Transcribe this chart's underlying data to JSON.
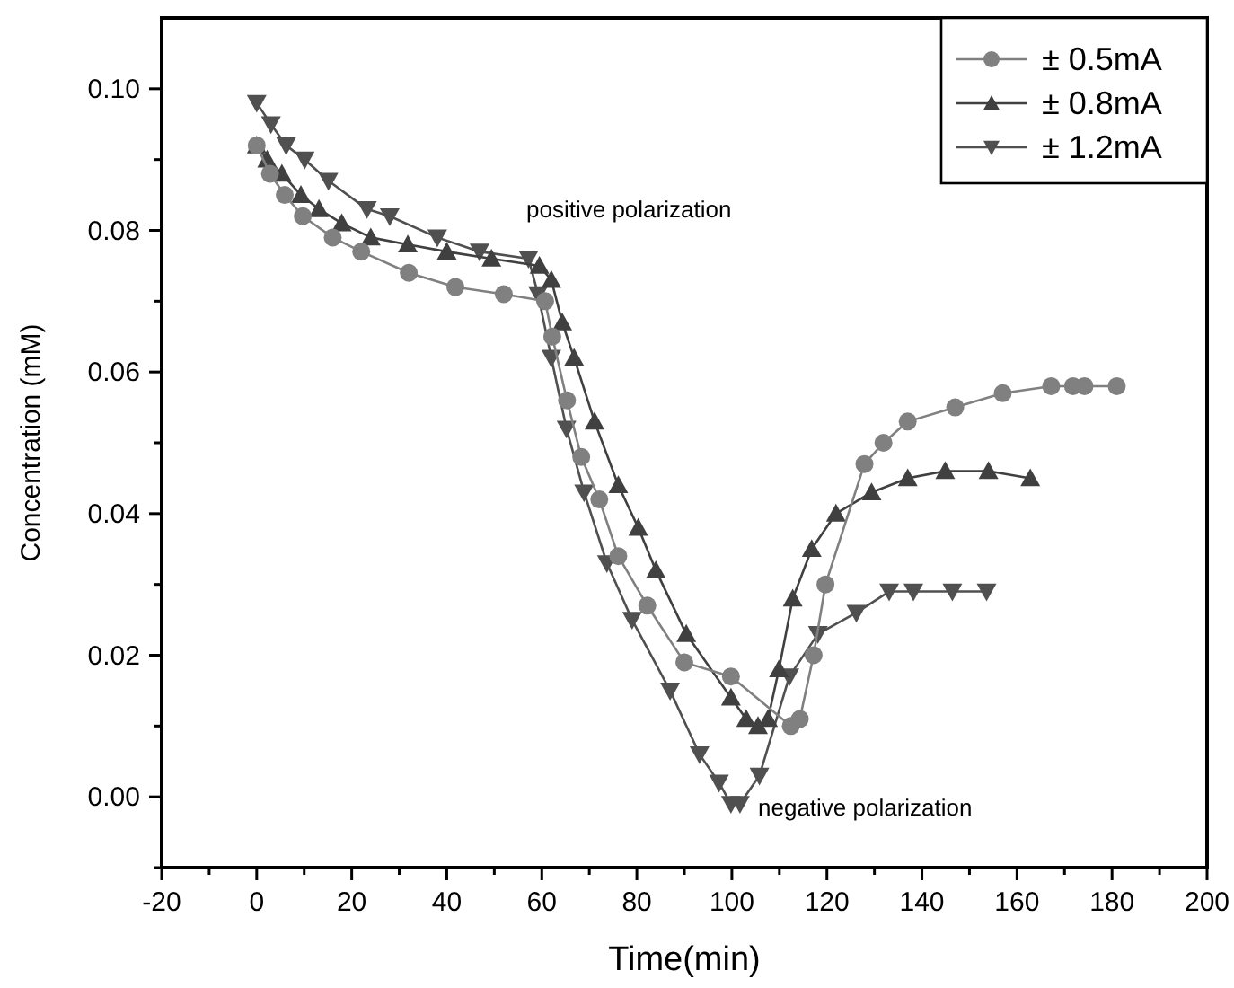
{
  "chart_data": {
    "type": "line",
    "xlabel": "Time(min)",
    "ylabel": "Concentration (mM)",
    "xlim": [
      -20,
      200
    ],
    "ylim": [
      -0.01,
      0.11
    ],
    "xticks": [
      -20,
      {
        "value": -10,
        "label": null
      },
      0,
      {
        "value": 10,
        "label": null
      },
      20,
      {
        "value": 30,
        "label": null
      },
      40,
      {
        "value": 50,
        "label": null
      },
      60,
      {
        "value": 70,
        "label": null
      },
      80,
      {
        "value": 90,
        "label": null
      },
      100,
      {
        "value": 110,
        "label": null
      },
      120,
      {
        "value": 130,
        "label": null
      },
      140,
      {
        "value": 150,
        "label": null
      },
      160,
      {
        "value": 170,
        "label": null
      },
      180,
      {
        "value": 190,
        "label": null
      },
      200
    ],
    "yticks": [
      {
        "value": -0.01,
        "label": null
      },
      {
        "value": 0,
        "label": "0.00"
      },
      {
        "value": 0.01,
        "label": null
      },
      {
        "value": 0.02,
        "label": "0.02"
      },
      {
        "value": 0.03,
        "label": null
      },
      {
        "value": 0.04,
        "label": "0.04"
      },
      {
        "value": 0.05,
        "label": null
      },
      {
        "value": 0.06,
        "label": "0.06"
      },
      {
        "value": 0.07,
        "label": null
      },
      {
        "value": 0.08,
        "label": "0.08"
      },
      {
        "value": 0.09,
        "label": null
      },
      {
        "value": 0.1,
        "label": "0.10"
      }
    ],
    "grid": false,
    "legend": "top right",
    "line_style": "solid",
    "annotations": [
      "positive polarization",
      "negative polarization"
    ],
    "series": [
      {
        "name": "± 0.5mA",
        "color": "#808080",
        "marker": "circle",
        "x": [
          0,
          2.8,
          5.9,
          9.7,
          16,
          22,
          32,
          41.8,
          52,
          60.7,
          62.2,
          65.3,
          68.3,
          72.1,
          76.1,
          82.2,
          90,
          99.8,
          112.4,
          114.3,
          117.2,
          119.7,
          127.9,
          131.9,
          137,
          147,
          157,
          167.2,
          171.8,
          174.2,
          181
        ],
        "values": [
          0.092,
          0.088,
          0.085,
          0.082,
          0.079,
          0.077,
          0.074,
          0.072,
          0.071,
          0.07,
          0.065,
          0.056,
          0.048,
          0.042,
          0.034,
          0.027,
          0.019,
          0.017,
          0.01,
          0.011,
          0.02,
          0.03,
          0.047,
          0.05,
          0.053,
          0.055,
          0.057,
          0.058,
          0.058,
          0.058,
          0.058
        ]
      },
      {
        "name": "± 0.8mA",
        "color": "#404040",
        "marker": "triangle",
        "x": [
          0,
          2.2,
          5.3,
          9.3,
          13.1,
          17.9,
          24,
          31.8,
          40,
          49.4,
          59.5,
          62,
          64.3,
          66.8,
          71.1,
          76.1,
          80.3,
          84,
          90.4,
          99.8,
          103,
          105.5,
          107.6,
          109.9,
          112.8,
          116.8,
          121.9,
          129.4,
          137,
          144.9,
          154,
          162.8
        ],
        "values": [
          0.092,
          0.09,
          0.088,
          0.085,
          0.083,
          0.081,
          0.079,
          0.078,
          0.077,
          0.076,
          0.075,
          0.073,
          0.067,
          0.062,
          0.053,
          0.044,
          0.038,
          0.032,
          0.023,
          0.014,
          0.011,
          0.01,
          0.011,
          0.018,
          0.028,
          0.035,
          0.04,
          0.043,
          0.045,
          0.046,
          0.046,
          0.045
        ]
      },
      {
        "name": "± 1.2mA",
        "color": "#505050",
        "marker": "triangle-down",
        "x": [
          0,
          3,
          6.2,
          10.1,
          15.1,
          23.2,
          28,
          38,
          46.9,
          57.2,
          59.2,
          62,
          65.2,
          68.9,
          73.7,
          79,
          87,
          93.2,
          97.3,
          99.8,
          101.7,
          105.8,
          112.1,
          118.1,
          126.2,
          133.1,
          138.2,
          146.4,
          153.6
        ],
        "values": [
          0.098,
          0.095,
          0.092,
          0.09,
          0.087,
          0.083,
          0.082,
          0.079,
          0.077,
          0.076,
          0.071,
          0.062,
          0.052,
          0.043,
          0.033,
          0.025,
          0.015,
          0.006,
          0.002,
          -0.001,
          -0.001,
          0.003,
          0.017,
          0.023,
          0.026,
          0.029,
          0.029,
          0.029,
          0.029
        ]
      }
    ]
  }
}
